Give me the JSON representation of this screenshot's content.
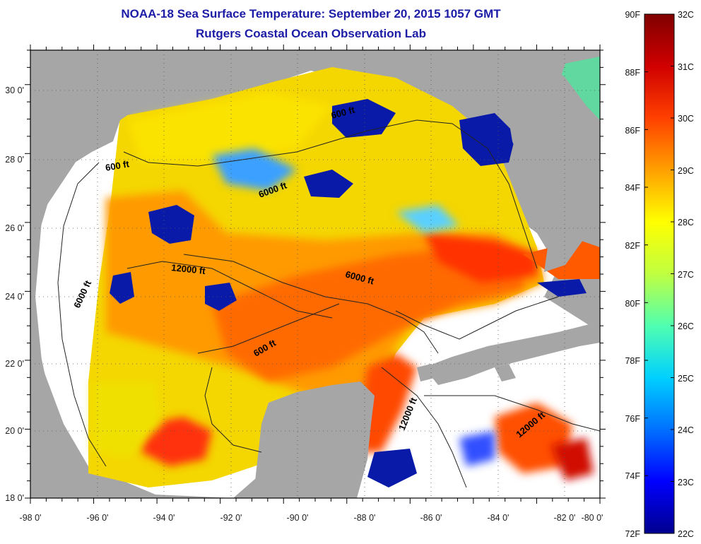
{
  "title": {
    "line1": "NOAA-18 Sea Surface Temperature:  September 20, 2015 1057 GMT",
    "line2": "Rutgers Coastal Ocean Observation Lab"
  },
  "map": {
    "lon_ticks": [
      "-98 0'",
      "-96 0'",
      "-94 0'",
      "-92 0'",
      "-90 0'",
      "-88 0'",
      "-86 0'",
      "-84 0'",
      "-82 0'",
      "-80 0'"
    ],
    "lat_ticks": [
      "18 0'",
      "20 0'",
      "22 0'",
      "24 0'",
      "26 0'",
      "28 0'",
      "30 0'"
    ],
    "lon_range": [
      -98,
      -80
    ],
    "lat_range": [
      18,
      31
    ],
    "contour_labels": [
      "600 ft",
      "600 ft",
      "6000 ft",
      "6000 ft",
      "12000 ft",
      "6000 ft",
      "600 ft",
      "12000 ft",
      "12000 ft"
    ],
    "colors": {
      "land": "#a6a6a6",
      "no_data": "#ffffff",
      "contour": "#222222"
    }
  },
  "colorbar": {
    "fahrenheit": [
      "90F",
      "88F",
      "86F",
      "84F",
      "82F",
      "80F",
      "78F",
      "76F",
      "74F",
      "72F"
    ],
    "celsius": [
      "32C",
      "31C",
      "30C",
      "29C",
      "28C",
      "27C",
      "26C",
      "25C",
      "24C",
      "23C",
      "22C"
    ],
    "stops": [
      "#00008f",
      "#0000ff",
      "#0070ff",
      "#00d0ff",
      "#50ffb0",
      "#c0ff40",
      "#ffff00",
      "#ffa000",
      "#ff4000",
      "#d00000",
      "#800000"
    ]
  }
}
